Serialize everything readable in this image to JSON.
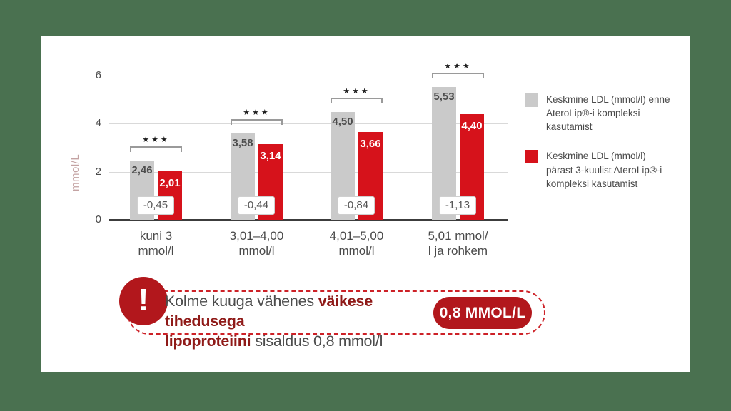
{
  "background_color": "#4a7150",
  "chart_data": {
    "type": "bar",
    "title": "",
    "xlabel": "",
    "ylabel": "mmol/L",
    "ylim": [
      0,
      6
    ],
    "yticks": [
      0,
      2,
      4,
      6
    ],
    "grid": true,
    "grid_highlight_tick": 6,
    "categories": [
      "kuni 3\nmmol/l",
      "3,01–4,00\nmmol/l",
      "4,01–5,00\nmmol/l",
      "5,01 mmol/\nl ja rohkem"
    ],
    "series": [
      {
        "name": "Keskmine LDL (mmol/l) enne AteroLip®-i kompleksi kasutamist",
        "color": "#cacaca",
        "values": [
          2.46,
          3.58,
          4.5,
          5.53
        ],
        "labels": [
          "2,46",
          "3,58",
          "4,50",
          "5,53"
        ]
      },
      {
        "name": "Keskmine LDL (mmol/l) pärast 3-kuulist AteroLip®-i kompleksi kasutamist",
        "color": "#d6121b",
        "values": [
          2.01,
          3.14,
          3.66,
          4.4
        ],
        "labels": [
          "2,01",
          "3,14",
          "3,66",
          "4,40"
        ]
      }
    ],
    "differences": [
      "-0,45",
      "-0,44",
      "-0,84",
      "-1,13"
    ],
    "significance": "★★★",
    "legend_position": "right"
  },
  "legend": {
    "entries": [
      {
        "swatch_color": "#cacaca",
        "text": "Keskmine LDL (mmol/l) enne\nAteroLip®-i kompleksi kasutamist"
      },
      {
        "swatch_color": "#d6121b",
        "text": "Keskmine LDL (mmol/l)\npärast 3-kuulist AteroLip®-i\nkompleksi kasutamist"
      }
    ]
  },
  "callout": {
    "icon": "!",
    "line1_regular": "Kolme kuuga vähenes ",
    "line1_bold": "väikese tihedusega",
    "line2_bold": "lipoproteiini",
    "line2_regular": " sisaldus 0,8 mmol/l",
    "badge": "0,8 MMOL/L",
    "badge_color": "#b2171c"
  }
}
